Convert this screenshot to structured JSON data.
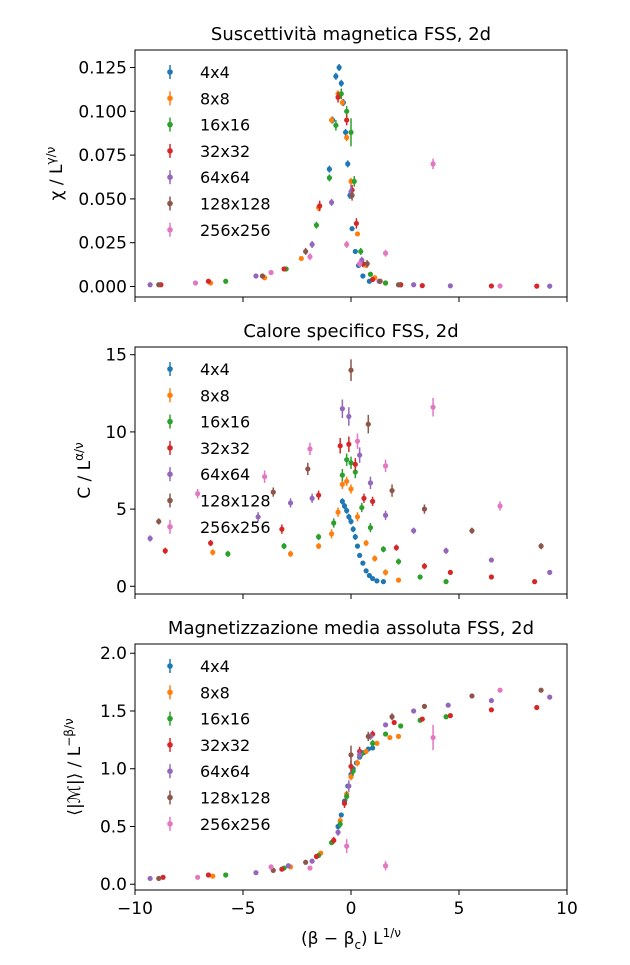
{
  "figure": {
    "background": "#ffffff",
    "shared_xlabel": "(β − β_c) L^{1/ν}"
  },
  "chart_data": [
    {
      "type": "scatter",
      "title": "Suscettività magnetica FSS, 2d",
      "ylabel": "χ / L^{γ/ν}",
      "xlim": [
        -10,
        10
      ],
      "ylim": [
        -0.006,
        0.135
      ],
      "yticks": [
        "0.000",
        "0.025",
        "0.050",
        "0.075",
        "0.100",
        "0.125"
      ],
      "ytick_values": [
        0,
        0.025,
        0.05,
        0.075,
        0.1,
        0.125
      ],
      "legend_position": "upper-left",
      "series": [
        {
          "name": "4x4",
          "color": "#1f77b4",
          "x": [
            -1.0,
            -0.85,
            -0.7,
            -0.55,
            -0.45,
            -0.35,
            -0.25,
            -0.15,
            -0.05,
            0.05,
            0.2,
            0.35,
            0.55,
            0.85
          ],
          "y": [
            0.067,
            0.095,
            0.12,
            0.125,
            0.116,
            0.105,
            0.088,
            0.07,
            0.052,
            0.033,
            0.02,
            0.012,
            0.006,
            0.003
          ],
          "err": [
            0.002,
            0.002,
            0.002,
            0.002,
            0.002,
            0.002,
            0.002,
            0.002,
            0.002,
            0.001,
            0.001,
            0.001,
            0.001,
            0.001
          ]
        },
        {
          "name": "8x8",
          "color": "#ff7f0e",
          "x": [
            -6.5,
            -4.0,
            -2.3,
            -1.5,
            -0.9,
            -0.6,
            -0.4,
            -0.2,
            0.0,
            0.3,
            0.7,
            1.1,
            1.6
          ],
          "y": [
            0.002,
            0.005,
            0.016,
            0.045,
            0.095,
            0.11,
            0.105,
            0.085,
            0.06,
            0.03,
            0.012,
            0.005,
            0.002
          ],
          "err": [
            0.001,
            0.001,
            0.001,
            0.002,
            0.002,
            0.002,
            0.002,
            0.002,
            0.002,
            0.001,
            0.001,
            0.001,
            0.001
          ]
        },
        {
          "name": "16x16",
          "color": "#2ca02c",
          "x": [
            -5.8,
            -3.0,
            -1.6,
            -1.0,
            -0.7,
            -0.45,
            -0.2,
            0.0,
            0.15,
            0.45,
            0.9,
            1.6,
            2.3
          ],
          "y": [
            0.003,
            0.01,
            0.035,
            0.062,
            0.092,
            0.11,
            0.1,
            0.088,
            0.06,
            0.02,
            0.007,
            0.002,
            0.001
          ],
          "err": [
            0.001,
            0.001,
            0.002,
            0.002,
            0.003,
            0.003,
            0.003,
            0.008,
            0.003,
            0.002,
            0.001,
            0.001,
            0.001
          ]
        },
        {
          "name": "32x32",
          "color": "#d62728",
          "x": [
            -8.8,
            -6.6,
            -3.1,
            -1.45,
            -0.6,
            -0.2,
            0.05,
            0.25,
            0.55,
            1.0,
            2.3,
            3.3,
            6.5,
            8.6
          ],
          "y": [
            0.001,
            0.003,
            0.01,
            0.046,
            0.108,
            0.095,
            0.055,
            0.036,
            0.013,
            0.004,
            0.001,
            0.0005,
            0.0003,
            0.0002
          ],
          "err": [
            0.001,
            0.001,
            0.001,
            0.003,
            0.003,
            0.003,
            0.003,
            0.003,
            0.002,
            0.001,
            0.001,
            0.001,
            0.001,
            0.001
          ]
        },
        {
          "name": "64x64",
          "color": "#9467bd",
          "x": [
            -9.3,
            -4.4,
            -1.8,
            -0.9,
            0.0,
            0.5,
            1.3,
            2.9,
            4.6,
            9.2
          ],
          "y": [
            0.001,
            0.006,
            0.024,
            0.048,
            0.054,
            0.015,
            0.003,
            0.001,
            0.0004,
            0.0002
          ],
          "err": [
            0.001,
            0.001,
            0.002,
            0.002,
            0.004,
            0.002,
            0.001,
            0.001,
            0.001,
            0.001
          ]
        },
        {
          "name": "128x128",
          "color": "#8c564b",
          "x": [
            -8.9,
            -4.1,
            -2.1,
            0.05,
            0.75,
            1.35,
            2.2
          ],
          "y": [
            0.001,
            0.006,
            0.02,
            0.052,
            0.013,
            0.003,
            0.001
          ],
          "err": [
            0.001,
            0.001,
            0.002,
            0.003,
            0.002,
            0.001,
            0.001
          ]
        },
        {
          "name": "256x256",
          "color": "#e377c2",
          "x": [
            -7.2,
            -3.7,
            -1.9,
            -0.2,
            0.4,
            1.6,
            3.8,
            6.9
          ],
          "y": [
            0.002,
            0.008,
            0.017,
            0.024,
            0.013,
            0.019,
            0.07,
            0.0003
          ],
          "err": [
            0.001,
            0.001,
            0.002,
            0.002,
            0.002,
            0.002,
            0.003,
            0.001
          ]
        }
      ]
    },
    {
      "type": "scatter",
      "title": "Calore specifico FSS, 2d",
      "ylabel": "C / L^{α/ν}",
      "xlim": [
        -10,
        10
      ],
      "ylim": [
        -0.5,
        15.5
      ],
      "yticks": [
        "0",
        "5",
        "10",
        "15"
      ],
      "ytick_values": [
        0,
        5,
        10,
        15
      ],
      "legend_position": "upper-left",
      "series": [
        {
          "name": "4x4",
          "color": "#1f77b4",
          "x": [
            -0.4,
            -0.3,
            -0.2,
            -0.1,
            0.0,
            0.1,
            0.2,
            0.3,
            0.4,
            0.55,
            0.7,
            0.85,
            1.0,
            1.2,
            1.5
          ],
          "y": [
            5.5,
            5.2,
            4.9,
            4.5,
            4.2,
            3.7,
            3.2,
            2.6,
            2.0,
            1.5,
            1.0,
            0.7,
            0.5,
            0.35,
            0.3
          ],
          "err": [
            0.2,
            0.2,
            0.2,
            0.2,
            0.2,
            0.2,
            0.2,
            0.15,
            0.15,
            0.1,
            0.1,
            0.1,
            0.1,
            0.1,
            0.1
          ]
        },
        {
          "name": "8x8",
          "color": "#ff7f0e",
          "x": [
            -6.4,
            -2.8,
            -1.5,
            -0.9,
            -0.6,
            -0.4,
            -0.2,
            0.0,
            0.3,
            0.7,
            1.1,
            1.6,
            2.2
          ],
          "y": [
            2.2,
            2.1,
            2.6,
            3.4,
            4.8,
            6.6,
            6.8,
            6.3,
            4.5,
            2.8,
            1.8,
            0.9,
            0.4
          ],
          "err": [
            0.2,
            0.2,
            0.2,
            0.3,
            0.3,
            0.3,
            0.3,
            0.3,
            0.3,
            0.2,
            0.2,
            0.2,
            0.1
          ]
        },
        {
          "name": "16x16",
          "color": "#2ca02c",
          "x": [
            -5.7,
            -3.1,
            -1.5,
            -0.8,
            -0.4,
            -0.2,
            0.0,
            0.2,
            0.5,
            0.9,
            1.5,
            2.2,
            3.2,
            4.4
          ],
          "y": [
            2.1,
            2.6,
            3.2,
            4.1,
            7.2,
            8.2,
            8.0,
            7.4,
            5.1,
            3.8,
            2.4,
            1.6,
            0.6,
            0.3
          ],
          "err": [
            0.2,
            0.2,
            0.2,
            0.3,
            0.4,
            0.4,
            0.4,
            0.4,
            0.3,
            0.3,
            0.2,
            0.2,
            0.1,
            0.1
          ]
        },
        {
          "name": "32x32",
          "color": "#d62728",
          "x": [
            -8.6,
            -6.5,
            -3.2,
            -1.5,
            -0.5,
            -0.1,
            0.2,
            0.6,
            1.0,
            2.1,
            3.4,
            4.6,
            6.5,
            8.5
          ],
          "y": [
            2.3,
            2.8,
            3.7,
            5.9,
            9.1,
            9.2,
            7.9,
            5.7,
            5.5,
            2.5,
            1.3,
            0.9,
            0.6,
            0.3
          ],
          "err": [
            0.2,
            0.2,
            0.3,
            0.3,
            0.5,
            0.5,
            0.4,
            0.3,
            0.3,
            0.2,
            0.2,
            0.1,
            0.1,
            0.1
          ]
        },
        {
          "name": "64x64",
          "color": "#9467bd",
          "x": [
            -9.3,
            -4.3,
            -2.8,
            -1.8,
            -0.4,
            -0.1,
            0.4,
            0.9,
            1.6,
            2.9,
            4.4,
            6.5,
            9.2
          ],
          "y": [
            3.1,
            4.5,
            5.4,
            5.7,
            11.5,
            11.0,
            8.5,
            6.7,
            4.6,
            3.6,
            2.3,
            1.7,
            0.9
          ],
          "err": [
            0.2,
            0.3,
            0.3,
            0.3,
            0.6,
            0.6,
            0.5,
            0.4,
            0.3,
            0.2,
            0.2,
            0.1,
            0.1
          ]
        },
        {
          "name": "128x128",
          "color": "#8c564b",
          "x": [
            -8.9,
            -3.6,
            -2.0,
            0.0,
            0.8,
            1.9,
            3.4,
            5.6,
            8.8
          ],
          "y": [
            4.2,
            6.1,
            7.6,
            14.0,
            10.5,
            6.2,
            5.0,
            3.6,
            2.6
          ],
          "err": [
            0.2,
            0.3,
            0.4,
            0.7,
            0.6,
            0.4,
            0.3,
            0.2,
            0.2
          ]
        },
        {
          "name": "256x256",
          "color": "#e377c2",
          "x": [
            -7.1,
            -4.0,
            -1.9,
            0.3,
            1.6,
            3.8,
            6.9
          ],
          "y": [
            6.0,
            7.1,
            8.9,
            9.4,
            7.8,
            11.6,
            5.2
          ],
          "err": [
            0.3,
            0.4,
            0.4,
            0.5,
            0.4,
            0.6,
            0.3
          ]
        }
      ]
    },
    {
      "type": "scatter",
      "title": "Magnetizzazione media assoluta FSS, 2d",
      "ylabel": "⟨|ℳ|⟩ / L^{−β/ν}",
      "xlabel": "(β − β_c) L^{1/ν}",
      "xlim": [
        -10,
        10
      ],
      "xticks": [
        "−10",
        "−5",
        "0",
        "5",
        "10"
      ],
      "xtick_values": [
        -10,
        -5,
        0,
        5,
        10
      ],
      "ylim": [
        -0.05,
        2.08
      ],
      "yticks": [
        "0.0",
        "0.5",
        "1.0",
        "1.5",
        "2.0"
      ],
      "ytick_values": [
        0,
        0.5,
        1.0,
        1.5,
        2.0
      ],
      "legend_position": "upper-left",
      "series": [
        {
          "name": "4x4",
          "color": "#1f77b4",
          "x": [
            -0.6,
            -0.45,
            -0.3,
            -0.15,
            0.0,
            0.1,
            0.25,
            0.4,
            0.6,
            0.8,
            1.0
          ],
          "y": [
            0.5,
            0.6,
            0.72,
            0.85,
            0.95,
            1.0,
            1.05,
            1.1,
            1.14,
            1.17,
            1.18
          ],
          "err": [
            0.02,
            0.02,
            0.02,
            0.02,
            0.02,
            0.02,
            0.02,
            0.02,
            0.02,
            0.02,
            0.02
          ]
        },
        {
          "name": "8x8",
          "color": "#ff7f0e",
          "x": [
            -6.4,
            -2.8,
            -1.4,
            -0.8,
            -0.5,
            -0.2,
            0.0,
            0.3,
            0.7,
            1.2,
            1.8,
            2.2
          ],
          "y": [
            0.07,
            0.15,
            0.27,
            0.38,
            0.55,
            0.78,
            0.93,
            1.05,
            1.15,
            1.22,
            1.27,
            1.28
          ],
          "err": [
            0.01,
            0.01,
            0.02,
            0.02,
            0.03,
            0.03,
            0.03,
            0.03,
            0.02,
            0.02,
            0.02,
            0.02
          ]
        },
        {
          "name": "16x16",
          "color": "#2ca02c",
          "x": [
            -5.8,
            -3.1,
            -1.5,
            -0.9,
            -0.5,
            -0.2,
            0.1,
            0.5,
            1.0,
            1.6,
            2.3,
            3.2,
            4.4
          ],
          "y": [
            0.08,
            0.14,
            0.25,
            0.36,
            0.52,
            0.76,
            0.98,
            1.13,
            1.22,
            1.3,
            1.37,
            1.42,
            1.45
          ],
          "err": [
            0.01,
            0.01,
            0.02,
            0.02,
            0.03,
            0.04,
            0.04,
            0.03,
            0.03,
            0.02,
            0.02,
            0.02,
            0.02
          ]
        },
        {
          "name": "32x32",
          "color": "#d62728",
          "x": [
            -8.7,
            -6.6,
            -3.2,
            -1.6,
            -0.8,
            -0.3,
            0.0,
            0.4,
            1.0,
            2.0,
            3.3,
            4.6,
            6.5,
            8.6
          ],
          "y": [
            0.06,
            0.08,
            0.13,
            0.24,
            0.38,
            0.7,
            1.02,
            1.15,
            1.3,
            1.4,
            1.43,
            1.46,
            1.51,
            1.53
          ],
          "err": [
            0.01,
            0.01,
            0.01,
            0.02,
            0.03,
            0.04,
            0.05,
            0.04,
            0.03,
            0.02,
            0.02,
            0.02,
            0.02,
            0.02
          ]
        },
        {
          "name": "64x64",
          "color": "#9467bd",
          "x": [
            -9.3,
            -4.4,
            -2.9,
            -1.8,
            -0.6,
            -0.1,
            0.4,
            0.9,
            1.6,
            2.9,
            4.5,
            6.5,
            9.2
          ],
          "y": [
            0.05,
            0.1,
            0.16,
            0.2,
            0.45,
            0.85,
            1.12,
            1.28,
            1.38,
            1.5,
            1.55,
            1.59,
            1.62
          ],
          "err": [
            0.01,
            0.01,
            0.01,
            0.02,
            0.03,
            0.05,
            0.04,
            0.03,
            0.02,
            0.02,
            0.02,
            0.02,
            0.02
          ]
        },
        {
          "name": "128x128",
          "color": "#8c564b",
          "x": [
            -8.9,
            -3.6,
            -2.1,
            0.0,
            0.8,
            1.9,
            3.4,
            5.6,
            8.8
          ],
          "y": [
            0.05,
            0.12,
            0.19,
            1.12,
            1.28,
            1.45,
            1.54,
            1.63,
            1.68
          ],
          "err": [
            0.01,
            0.01,
            0.02,
            0.08,
            0.04,
            0.03,
            0.02,
            0.02,
            0.02
          ]
        },
        {
          "name": "256x256",
          "color": "#e377c2",
          "x": [
            -7.1,
            -3.7,
            -1.9,
            -0.2,
            1.6,
            3.8,
            6.9
          ],
          "y": [
            0.06,
            0.15,
            0.14,
            0.33,
            0.16,
            1.27,
            1.68
          ],
          "err": [
            0.01,
            0.01,
            0.02,
            0.06,
            0.04,
            0.11,
            0.02
          ]
        }
      ]
    }
  ]
}
